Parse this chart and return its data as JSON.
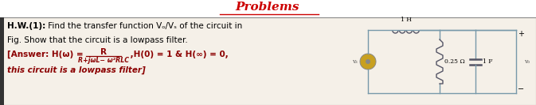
{
  "title": "Problems",
  "title_color": "#cc0000",
  "title_fontsize": 11,
  "bg_color": "#ffffff",
  "content_bg": "#f5f0e8",
  "border_color": "#888888",
  "text_dark_color": "#000000",
  "text_red_color": "#8B0000",
  "line1_bold": "H.W.(1):",
  "line1_rest": " Find the transfer function Vₒ/Vₛ of the circuit in",
  "line2": "Fig. Show that the circuit is a lowpass filter.",
  "ans_prefix": "[Answer: H(ω) = ",
  "frac_num": "R",
  "frac_den": "R+jωL− ω²RLC",
  "ans_suffix": " ,H(0) = 1 & H(∞) = 0,",
  "line4": "this circuit is a lowpass filter]",
  "circuit_color": "#6699aa",
  "src_color": "#c8a020",
  "wire_color": "#7799aa"
}
